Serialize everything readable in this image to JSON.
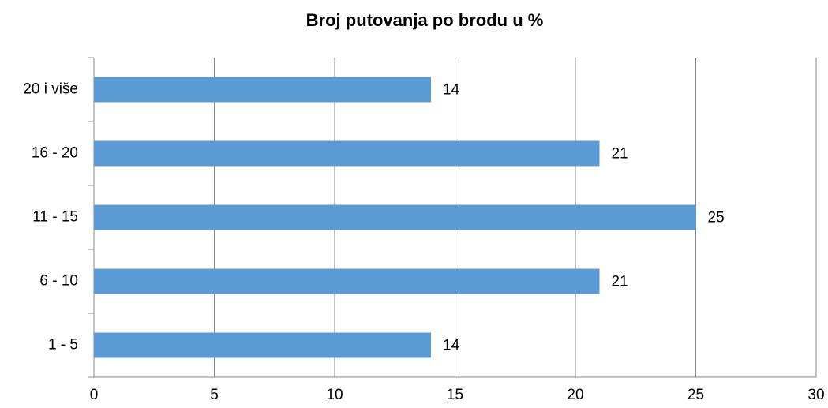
{
  "chart_data": {
    "type": "bar",
    "orientation": "horizontal",
    "title": "Broj putovanja po brodu u %",
    "categories": [
      "1 - 5",
      "6 - 10",
      "11 - 15",
      "16 - 20",
      "20 i više"
    ],
    "values": [
      14,
      21,
      25,
      21,
      14
    ],
    "color": "#5b9bd5",
    "xlim": [
      0,
      30
    ],
    "xticks": [
      0,
      5,
      10,
      15,
      20,
      25,
      30
    ],
    "grid": true
  }
}
